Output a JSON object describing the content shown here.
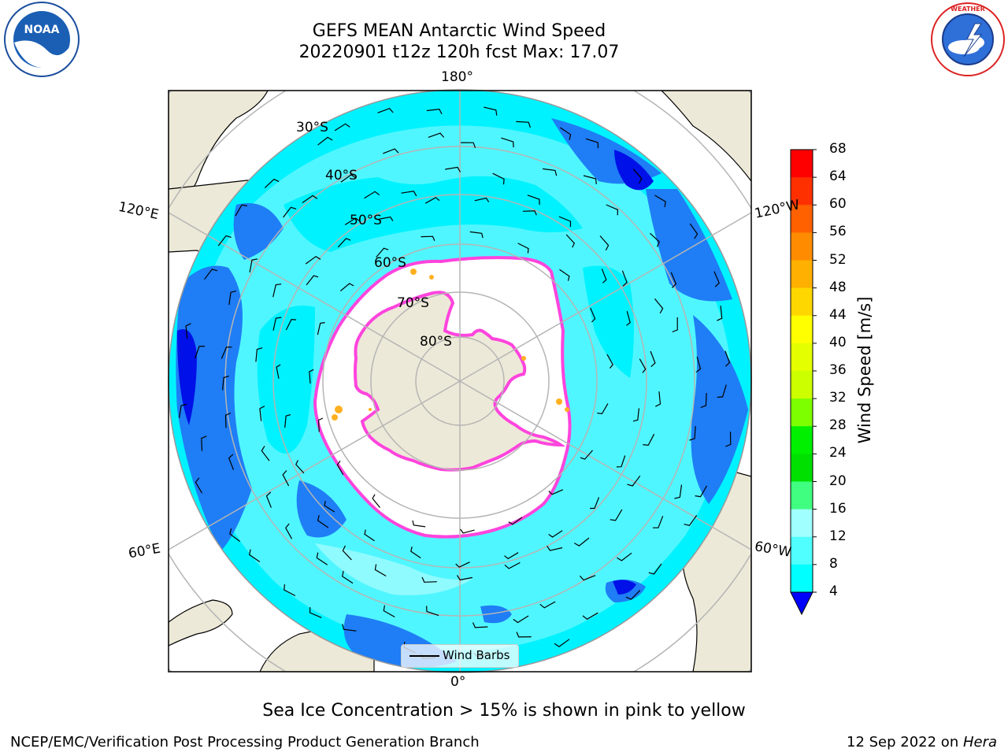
{
  "title_line1": "GEFS MEAN Antarctic Wind Speed",
  "title_line2": "20220901 t12z 120h fcst   Max: 17.07",
  "caption": "Sea Ice Concentration > 15% is shown in pink to yellow",
  "footer_left": "NCEP/EMC/Verification Post Processing Product Generation Branch",
  "footer_right_prefix": "12 Sep 2022 on ",
  "footer_right_host": "Hera",
  "legend_label": "Wind Barbs",
  "longitude_labels": {
    "top": "180°",
    "bottom": "0°",
    "upper_left": "120°E",
    "upper_right": "120°W",
    "lower_left": "60°E",
    "lower_right": "60°W"
  },
  "latitude_labels": [
    "30°S",
    "40°S",
    "50°S",
    "60°S",
    "70°S",
    "80°S"
  ],
  "colorbar": {
    "label": "Wind Speed [m/s]",
    "ticks": [
      "68",
      "64",
      "60",
      "56",
      "52",
      "48",
      "44",
      "40",
      "36",
      "32",
      "28",
      "24",
      "20",
      "16",
      "12",
      "8",
      "4"
    ],
    "colors": [
      "#ff0000",
      "#ff3000",
      "#ff6000",
      "#ff8c00",
      "#ffb000",
      "#ffd700",
      "#ffff00",
      "#e4ff00",
      "#ccff00",
      "#7dff00",
      "#00f000",
      "#00e000",
      "#40ff80",
      "#a0ffff",
      "#50ffff",
      "#00ffff",
      "#0080ff"
    ],
    "extend_color": "#0000ff"
  },
  "logos": {
    "noaa": "NOAA",
    "nws": "NATIONAL WEATHER SERVICE"
  }
}
